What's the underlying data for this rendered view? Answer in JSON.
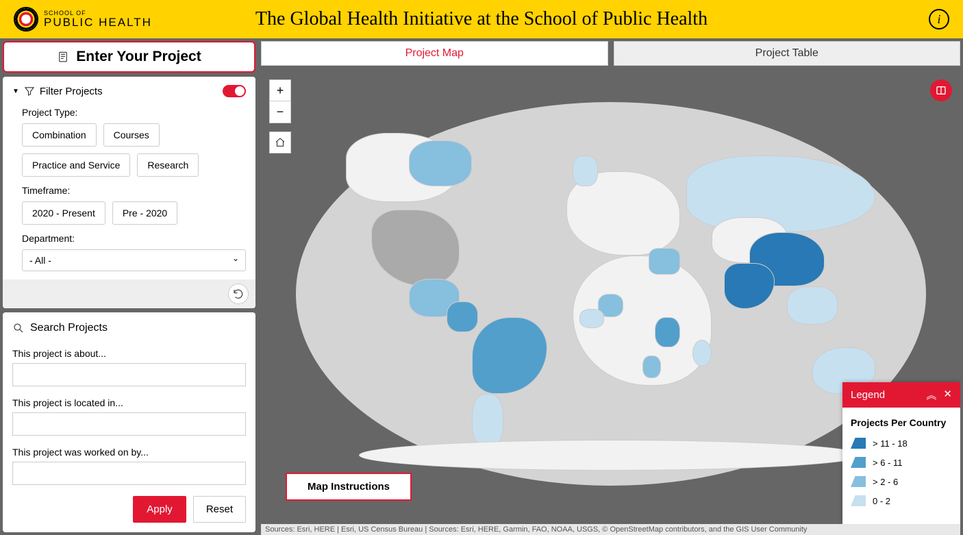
{
  "header": {
    "org_line1": "SCHOOL OF",
    "org_line2": "PUBLIC HEALTH",
    "title": "The Global Health Initiative at the School of Public Health"
  },
  "sidebar": {
    "enter_project_label": "Enter Your Project",
    "filter": {
      "title": "Filter Projects",
      "toggle_on": true,
      "project_type_label": "Project Type:",
      "project_types": [
        "Combination",
        "Courses",
        "Practice and Service",
        "Research"
      ],
      "timeframe_label": "Timeframe:",
      "timeframes": [
        "2020 - Present",
        "Pre - 2020"
      ],
      "department_label": "Department:",
      "department_value": "- All -"
    },
    "search": {
      "title": "Search Projects",
      "about_label": "This project is about...",
      "located_label": "This project is located in...",
      "worked_label": "This project was worked on by...",
      "apply_label": "Apply",
      "reset_label": "Reset"
    }
  },
  "tabs": {
    "map": "Project Map",
    "table": "Project Table"
  },
  "map": {
    "instructions_label": "Map Instructions",
    "attribution": "Sources: Esri, HERE | Esri, US Census Bureau | Sources: Esri, HERE, Garmin, FAO, NOAA, USGS, © OpenStreetMap contributors, and the GIS User Community"
  },
  "legend": {
    "header": "Legend",
    "title": "Projects Per Country",
    "items": [
      {
        "label": "> 11 - 18",
        "color": "#2879b5"
      },
      {
        "label": "> 6 - 11",
        "color": "#529fcc"
      },
      {
        "label": "> 2 - 6",
        "color": "#87bfde"
      },
      {
        "label": "0 - 2",
        "color": "#c6e0f0"
      }
    ]
  },
  "colors": {
    "brand_yellow": "#ffd200",
    "brand_red": "#e21833",
    "map_bg": "#666666",
    "ocean": "#d4d4d4",
    "land_default": "#f2f2f2"
  }
}
